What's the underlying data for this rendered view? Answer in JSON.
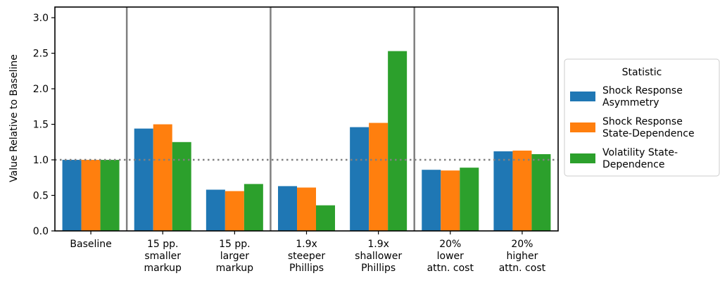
{
  "chart_data": {
    "type": "bar",
    "ylabel": "Value Relative to Baseline",
    "xlabel": "",
    "ylim": [
      0,
      3.15
    ],
    "yticks": [
      "0.0",
      "0.5",
      "1.0",
      "1.5",
      "2.0",
      "2.5",
      "3.0"
    ],
    "reference_line": 1.0,
    "categories": [
      [
        "Baseline"
      ],
      [
        "15 pp.",
        "smaller",
        "markup"
      ],
      [
        "15 pp.",
        "larger",
        "markup"
      ],
      [
        "1.9x",
        "steeper",
        "Phillips"
      ],
      [
        "1.9x",
        "shallower",
        "Phillips"
      ],
      [
        "20%",
        "lower",
        "attn. cost"
      ],
      [
        "20%",
        "higher",
        "attn. cost"
      ]
    ],
    "group_separators_after": [
      0,
      2,
      4
    ],
    "series": [
      {
        "name": "Shock Response Asymmetry",
        "color": "#1f77b4",
        "values": [
          1.0,
          1.44,
          0.58,
          0.63,
          1.46,
          0.86,
          1.12
        ]
      },
      {
        "name": "Shock Response State-Dependence",
        "color": "#ff7f0e",
        "values": [
          1.0,
          1.5,
          0.56,
          0.61,
          1.52,
          0.85,
          1.13
        ]
      },
      {
        "name": "Volatility State-Dependence",
        "color": "#2ca02c",
        "values": [
          1.0,
          1.25,
          0.66,
          0.36,
          2.53,
          0.89,
          1.08
        ]
      }
    ],
    "legend": {
      "title": "Statistic",
      "placement": "right",
      "entries": [
        [
          "Shock Response",
          "Asymmetry"
        ],
        [
          "Shock Response",
          "State-Dependence"
        ],
        [
          "Volatility State-",
          "Dependence"
        ]
      ]
    }
  }
}
